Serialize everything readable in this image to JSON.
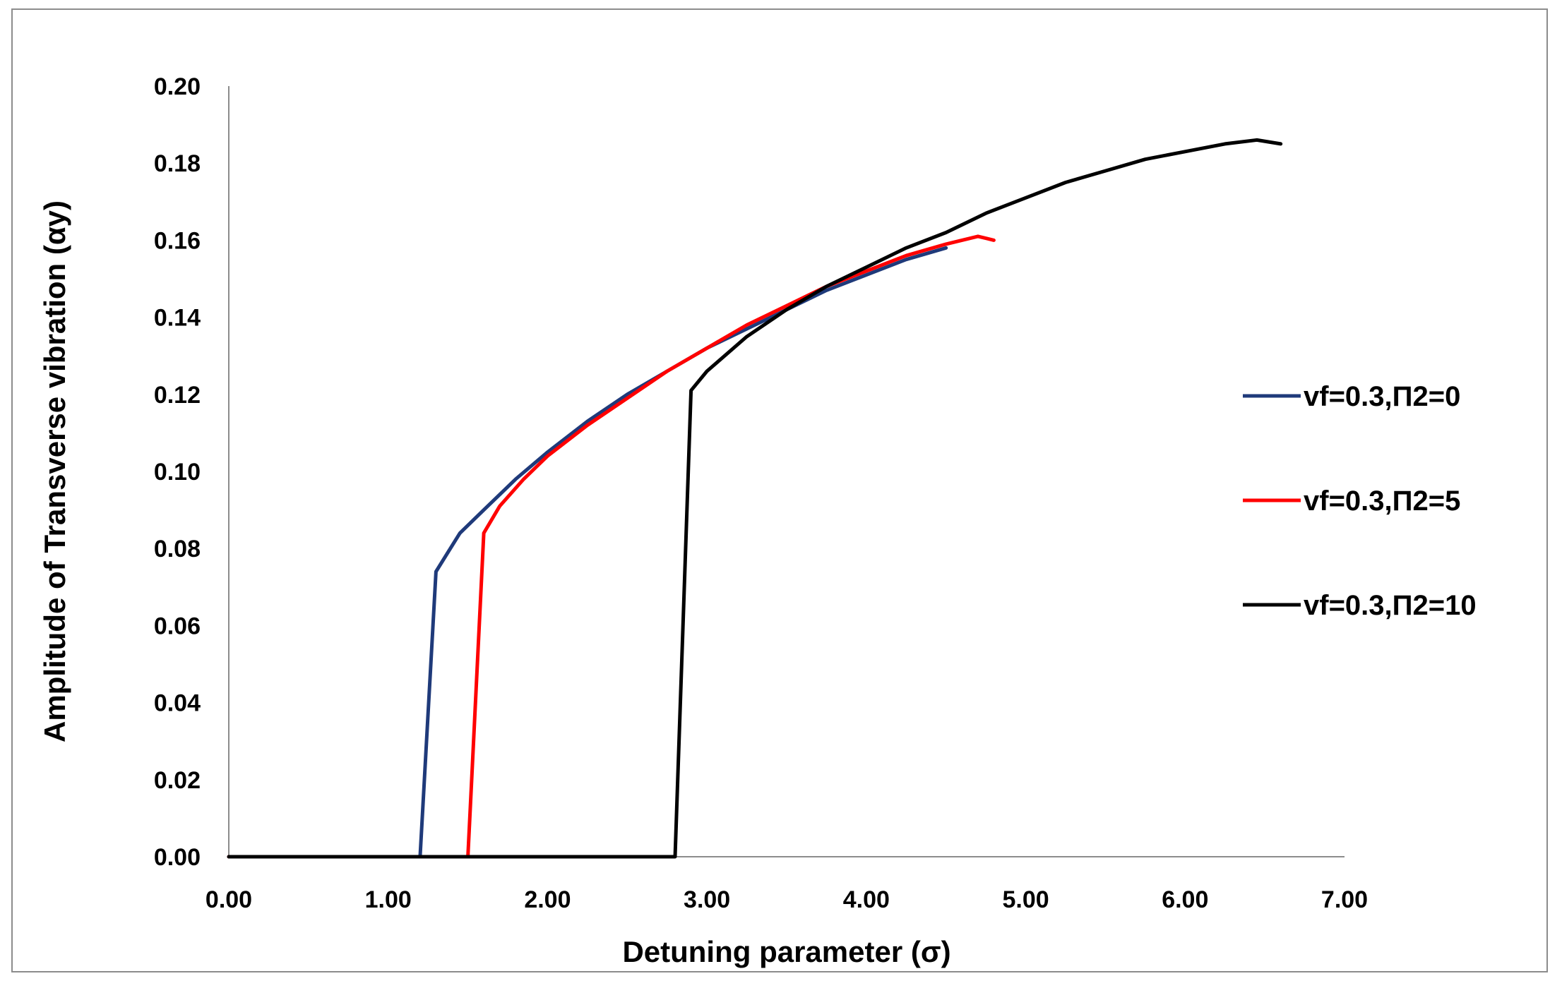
{
  "chart_data": {
    "type": "line",
    "title": "",
    "xlabel": "Detuning parameter (σ)",
    "ylabel": "Amplitude of Transverse vibration (αy)",
    "xlim": [
      0,
      7
    ],
    "ylim": [
      0,
      0.2
    ],
    "x_ticks": [
      0,
      1,
      2,
      3,
      4,
      5,
      6,
      7
    ],
    "x_tick_labels": [
      "0.00",
      "1.00",
      "2.00",
      "3.00",
      "4.00",
      "5.00",
      "6.00",
      "7.00"
    ],
    "y_ticks": [
      0,
      0.02,
      0.04,
      0.06,
      0.08,
      0.1,
      0.12,
      0.14,
      0.16,
      0.18,
      0.2
    ],
    "y_tick_labels": [
      "0.00",
      "0.02",
      "0.04",
      "0.06",
      "0.08",
      "0.10",
      "0.12",
      "0.14",
      "0.16",
      "0.18",
      "0.20"
    ],
    "grid": false,
    "legend_position": "right",
    "series": [
      {
        "name": "vf=0.3,Π2=0",
        "color": "#1f3a7a",
        "x": [
          0,
          1.2,
          1.3,
          1.45,
          1.6,
          1.8,
          2.0,
          2.25,
          2.5,
          2.75,
          3.0,
          3.25,
          3.5,
          3.75,
          4.0,
          4.25,
          4.5
        ],
        "y": [
          0,
          0,
          0.074,
          0.084,
          0.09,
          0.098,
          0.105,
          0.113,
          0.12,
          0.126,
          0.132,
          0.137,
          0.142,
          0.147,
          0.151,
          0.155,
          0.158
        ]
      },
      {
        "name": "vf=0.3,Π2=5",
        "color": "#ff0000",
        "x": [
          0,
          1.5,
          1.6,
          1.7,
          1.85,
          2.0,
          2.25,
          2.5,
          2.75,
          3.0,
          3.25,
          3.5,
          3.75,
          4.0,
          4.25,
          4.5,
          4.7,
          4.8
        ],
        "y": [
          0,
          0,
          0.084,
          0.091,
          0.098,
          0.104,
          0.112,
          0.119,
          0.126,
          0.132,
          0.138,
          0.143,
          0.148,
          0.152,
          0.156,
          0.159,
          0.161,
          0.16
        ]
      },
      {
        "name": "vf=0.3,Π2=10",
        "color": "#000000",
        "x": [
          0,
          2.8,
          2.9,
          3.0,
          3.25,
          3.5,
          3.75,
          4.0,
          4.25,
          4.5,
          4.75,
          5.0,
          5.25,
          5.5,
          5.75,
          6.0,
          6.25,
          6.45,
          6.6
        ],
        "y": [
          0,
          0,
          0.121,
          0.126,
          0.135,
          0.142,
          0.148,
          0.153,
          0.158,
          0.162,
          0.167,
          0.171,
          0.175,
          0.178,
          0.181,
          0.183,
          0.185,
          0.186,
          0.185
        ]
      }
    ]
  }
}
